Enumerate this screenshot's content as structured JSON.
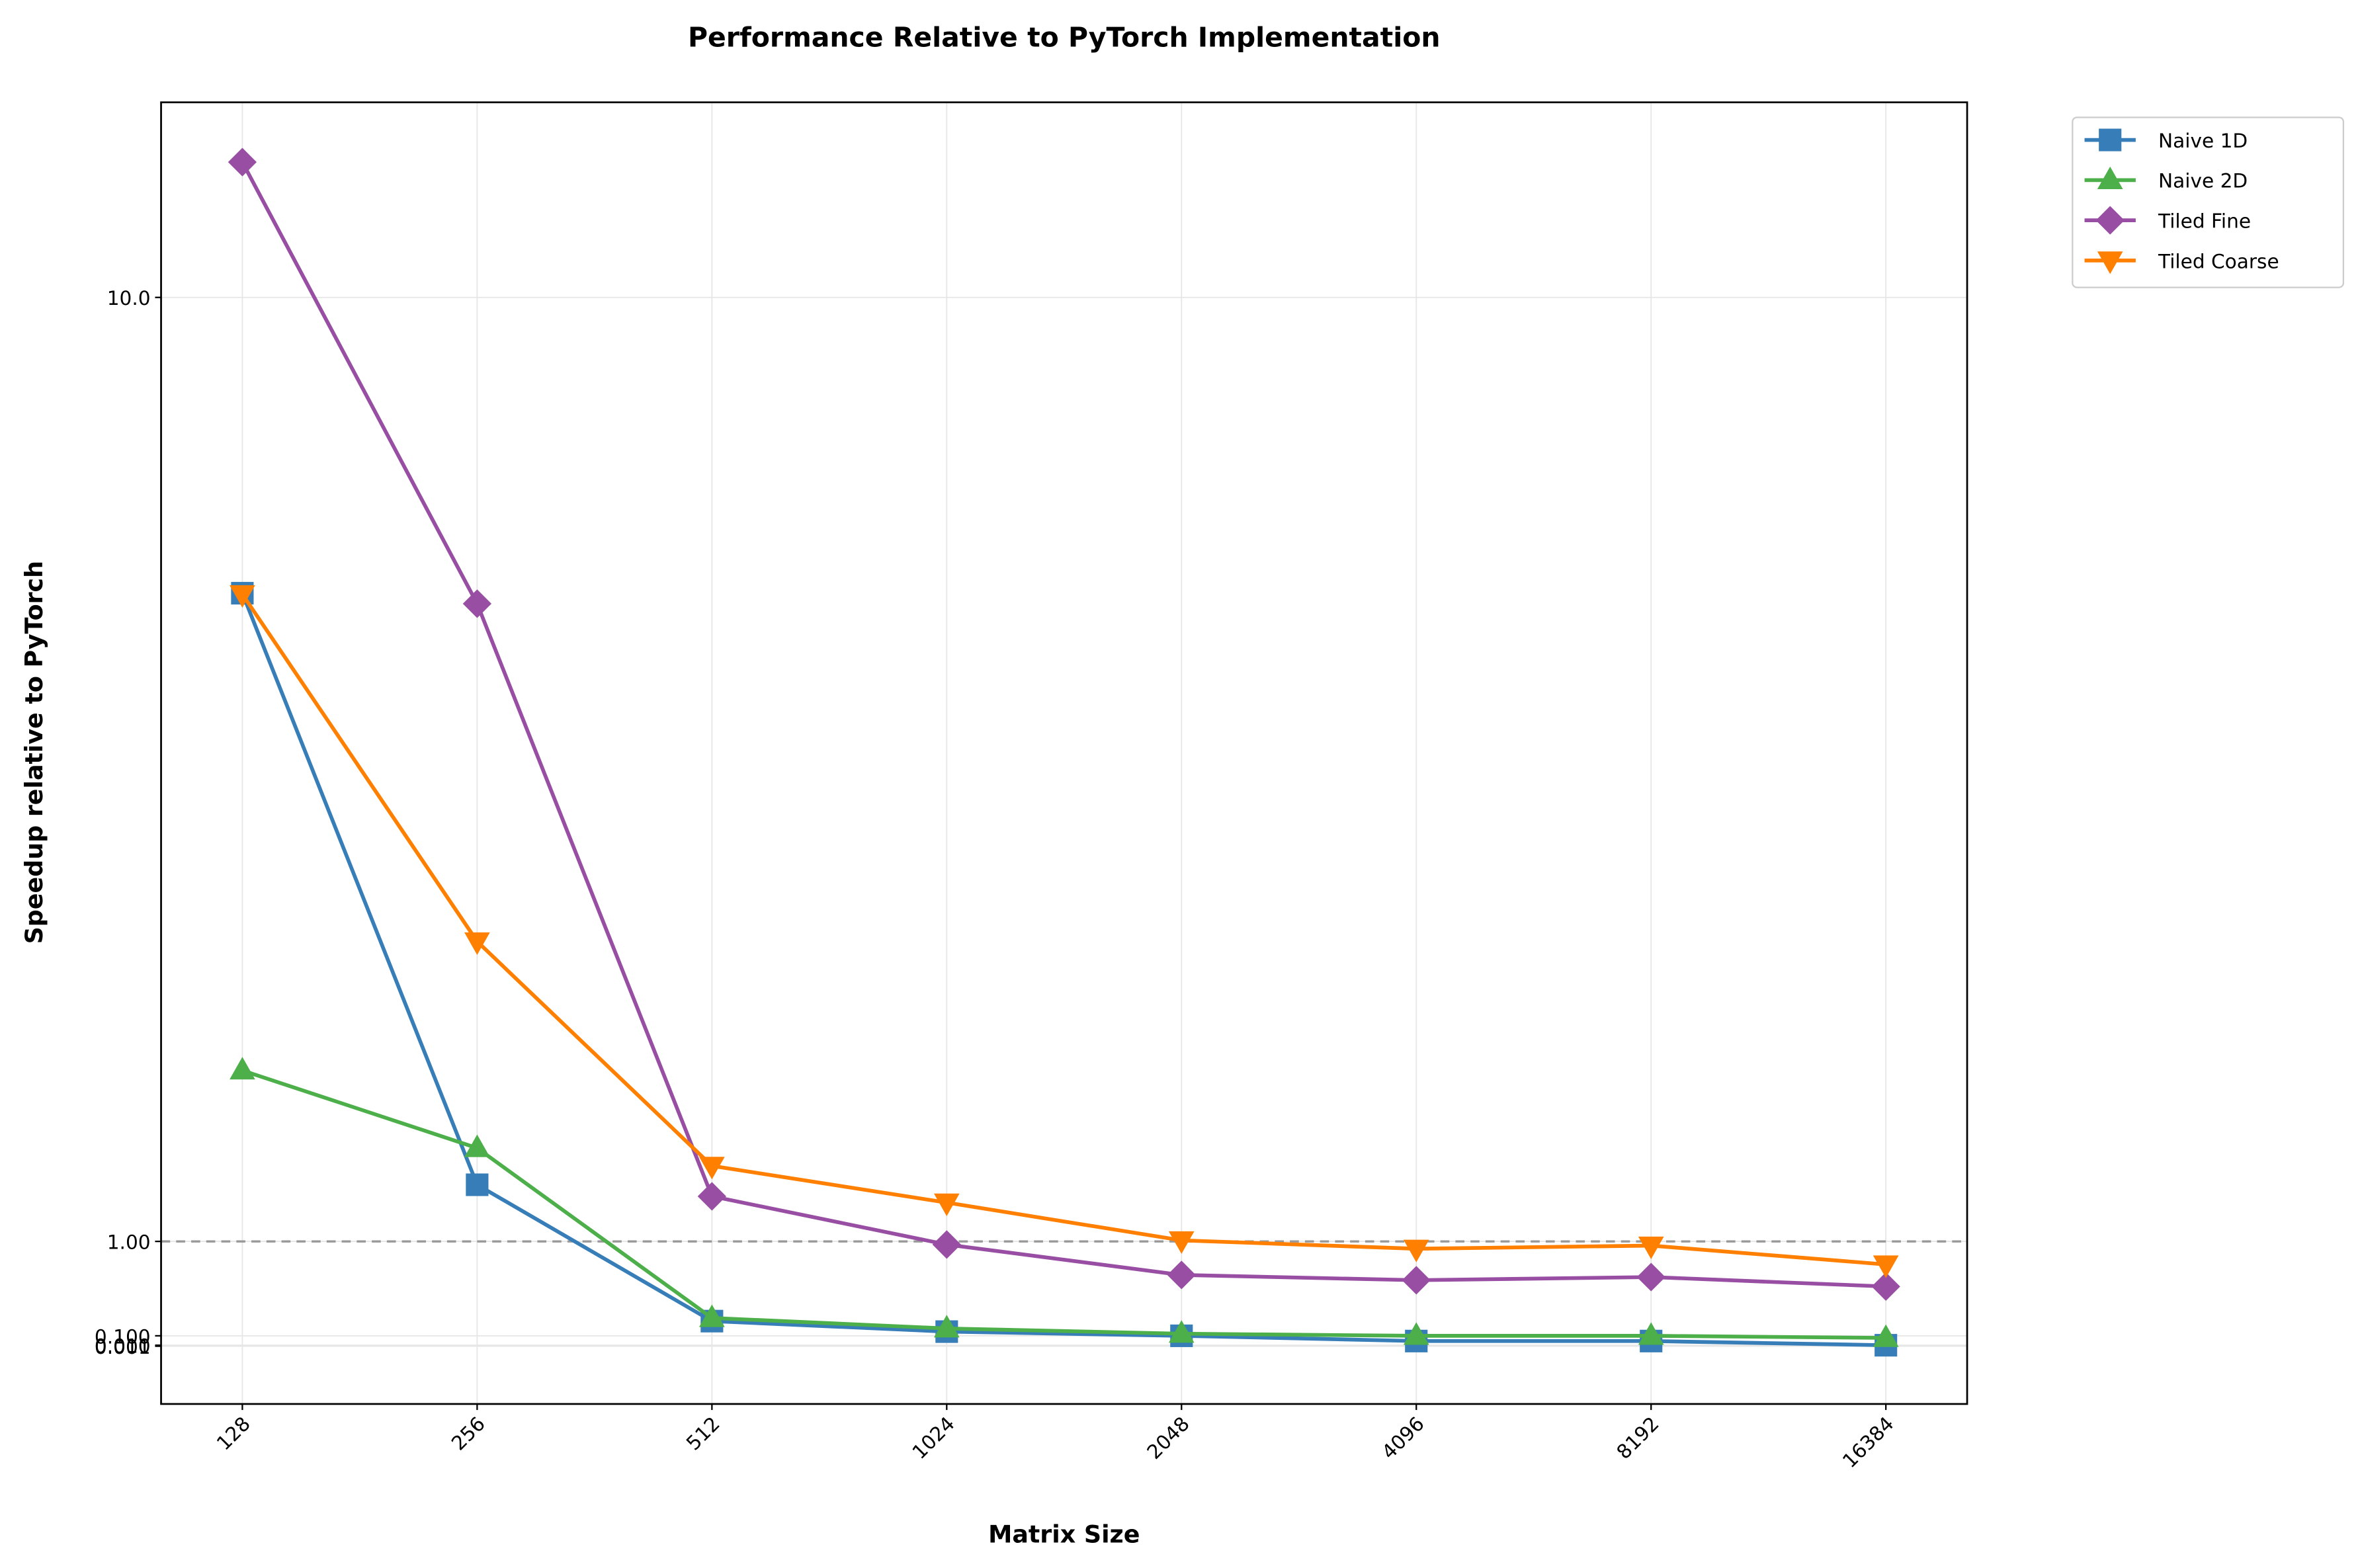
{
  "chart_data": {
    "type": "line",
    "title": "Performance Relative to PyTorch Implementation",
    "x_label": "Matrix Size",
    "y_label": "Speedup relative to PyTorch",
    "categories": [
      "128",
      "256",
      "512",
      "1024",
      "2048",
      "4096",
      "8192",
      "16384"
    ],
    "series": [
      {
        "name": "Naive 1D",
        "color": "#377eb8",
        "marker": "square",
        "values": [
          7.18,
          1.54,
          0.24,
          0.14,
          0.1,
          0.05,
          0.05,
          0.01
        ]
      },
      {
        "name": "Naive 2D",
        "color": "#4daf4a",
        "marker": "triangle-up",
        "values": [
          2.63,
          1.89,
          0.27,
          0.17,
          0.12,
          0.1,
          0.1,
          0.08
        ]
      },
      {
        "name": "Tiled Fine",
        "color": "#984ea3",
        "marker": "diamond",
        "values": [
          11.29,
          7.08,
          1.43,
          0.97,
          0.68,
          0.63,
          0.66,
          0.57
        ]
      },
      {
        "name": "Tiled Coarse",
        "color": "#ff7f00",
        "marker": "triangle-down",
        "values": [
          7.17,
          3.86,
          1.72,
          1.37,
          1.01,
          0.93,
          0.96,
          0.78
        ]
      }
    ],
    "ylim": [
      -0.55,
      11.86
    ],
    "yticks": [
      {
        "value": 0.001,
        "label": "0.001"
      },
      {
        "value": 0.01,
        "label": "0.010"
      },
      {
        "value": 0.1,
        "label": "0.100"
      },
      {
        "value": 1,
        "label": "1.00"
      },
      {
        "value": 10,
        "label": "10.0"
      }
    ],
    "reference_line": 1,
    "grid": true,
    "legend": "outside-upper-right"
  }
}
